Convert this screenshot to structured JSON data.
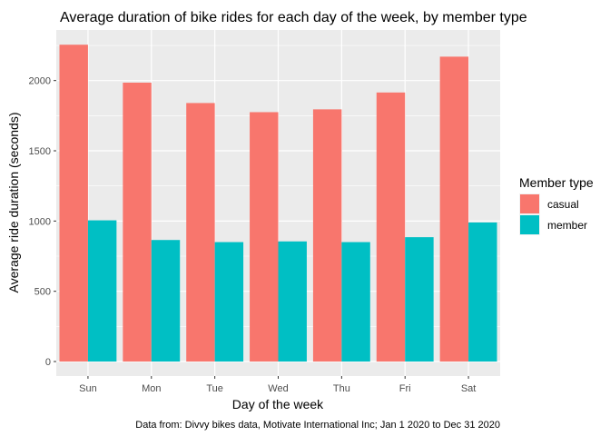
{
  "chart_data": {
    "type": "bar",
    "title": "Average duration of bike rides for each day of the week, by member type",
    "xlabel": "Day of the week",
    "ylabel": "Average ride duration (seconds)",
    "caption": "Data from: Divvy bikes data, Motivate International Inc; Jan 1 2020 to Dec 31 2020",
    "categories": [
      "Sun",
      "Mon",
      "Tue",
      "Wed",
      "Thu",
      "Fri",
      "Sat"
    ],
    "ylim": [
      0,
      2360
    ],
    "yticks": [
      0,
      500,
      1000,
      1500,
      2000
    ],
    "legend": {
      "title": "Member type",
      "position": "right"
    },
    "series": [
      {
        "name": "casual",
        "color": "#F8766D",
        "values": [
          2255,
          1985,
          1840,
          1775,
          1795,
          1915,
          2170
        ]
      },
      {
        "name": "member",
        "color": "#00BFC4",
        "values": [
          1005,
          865,
          850,
          855,
          850,
          885,
          990
        ]
      }
    ],
    "panel_background": "#EBEBEB",
    "grid_color": "#FFFFFF",
    "grid": true
  }
}
